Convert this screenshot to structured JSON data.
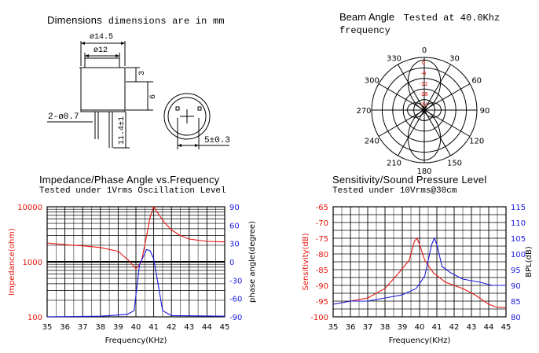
{
  "dimensions": {
    "title": "Dimensions",
    "note": "dimensions are in mm",
    "d_outer": "ø14.5",
    "d_inner": "ø12",
    "h_top": "3",
    "h_body": "6",
    "pins": "2-ø0.7",
    "pin_len": "11.4±1",
    "pitch": "5±0.3"
  },
  "beam": {
    "title": "Beam Angle",
    "tested": "Tested at 40.0Khz",
    "freq_word": "frequency",
    "angle_labels": [
      "0",
      "30",
      "60",
      "90",
      "120",
      "150",
      "180",
      "210",
      "240",
      "270",
      "300",
      "330"
    ],
    "ring_labels": [
      "0",
      "-6",
      "-12",
      "-18",
      "-24"
    ]
  },
  "impedance": {
    "title": "Impedance/Phase Angle vs.Frequency",
    "subtitle": "Tested under 1Vrms Oscillation Level",
    "ylabel_left": "Impedance(ohm)",
    "ylabel_right": "phase angle(degree)",
    "xlabel": "Frequency(KHz)"
  },
  "sensitivity": {
    "title": "Sensitivity/Sound Pressure Level",
    "subtitle": "Tested under 10Vrms@30cm",
    "ylabel_left": "Sensitivity(dB)",
    "ylabel_right": "BPL(dB)",
    "xlabel": "Frequency(KHz)"
  },
  "colors": {
    "red": "#e8140c",
    "blue": "#1a1adf",
    "grid": "#000000"
  },
  "chart_data": [
    {
      "type": "line",
      "x": [
        35,
        36,
        37,
        38,
        39,
        40,
        41,
        42,
        43,
        44,
        45
      ],
      "xlim": [
        35,
        45
      ],
      "ylim_left": [
        100,
        10000
      ],
      "yscale_left": "log",
      "ylim_right": [
        -90,
        90
      ],
      "left_ticks": [
        "10000",
        "1000",
        "100"
      ],
      "right_ticks": [
        "90",
        "60",
        "30",
        "0",
        "-30",
        "-60",
        "-90"
      ],
      "grid": true,
      "series": [
        {
          "axis": "left",
          "color": "#e8140c",
          "points": [
            [
              35,
              2200
            ],
            [
              36,
              2050
            ],
            [
              37,
              1950
            ],
            [
              38,
              1820
            ],
            [
              39,
              1550
            ],
            [
              39.6,
              1050
            ],
            [
              40,
              750
            ],
            [
              40.3,
              980
            ],
            [
              40.6,
              3000
            ],
            [
              40.8,
              6500
            ],
            [
              41,
              10000
            ],
            [
              41.2,
              8000
            ],
            [
              41.6,
              5200
            ],
            [
              42,
              3800
            ],
            [
              42.5,
              3000
            ],
            [
              43,
              2600
            ],
            [
              44,
              2350
            ],
            [
              45,
              2300
            ]
          ]
        },
        {
          "axis": "right",
          "color": "#1a1adf",
          "points": [
            [
              35,
              -90
            ],
            [
              38,
              -89
            ],
            [
              39.5,
              -86
            ],
            [
              39.9,
              -80
            ],
            [
              40.2,
              -5
            ],
            [
              40.6,
              20
            ],
            [
              40.8,
              18
            ],
            [
              41,
              5
            ],
            [
              41.3,
              -45
            ],
            [
              41.5,
              -80
            ],
            [
              42,
              -88
            ],
            [
              45,
              -89
            ]
          ]
        }
      ]
    },
    {
      "type": "line",
      "x": [
        35,
        36,
        37,
        38,
        39,
        40,
        41,
        42,
        43,
        44,
        45
      ],
      "xlim": [
        35,
        45
      ],
      "ylim_left": [
        -100,
        -65
      ],
      "ylim_right": [
        80,
        115
      ],
      "left_ticks": [
        "-65",
        "-70",
        "-75",
        "-80",
        "-85",
        "-90",
        "-95",
        "-100"
      ],
      "right_ticks": [
        "115",
        "110",
        "105",
        "100",
        "95",
        "90",
        "85",
        "80"
      ],
      "grid": true,
      "series": [
        {
          "axis": "left",
          "color": "#e8140c",
          "points": [
            [
              35,
              -96
            ],
            [
              36,
              -95
            ],
            [
              37,
              -94
            ],
            [
              38,
              -91
            ],
            [
              38.8,
              -86
            ],
            [
              39.4,
              -82
            ],
            [
              39.7,
              -76
            ],
            [
              39.85,
              -75
            ],
            [
              40,
              -77
            ],
            [
              40.3,
              -82
            ],
            [
              40.8,
              -86
            ],
            [
              41.5,
              -89
            ],
            [
              42.5,
              -91
            ],
            [
              43.2,
              -93
            ],
            [
              44,
              -96
            ],
            [
              44.5,
              -97
            ],
            [
              45,
              -97
            ]
          ]
        },
        {
          "axis": "right",
          "color": "#1a1adf",
          "points": [
            [
              35,
              84
            ],
            [
              36,
              85
            ],
            [
              37,
              85
            ],
            [
              38,
              86
            ],
            [
              39,
              87
            ],
            [
              39.8,
              89
            ],
            [
              40.3,
              93
            ],
            [
              40.7,
              103
            ],
            [
              40.85,
              105
            ],
            [
              41,
              103
            ],
            [
              41.3,
              96
            ],
            [
              41.8,
              94
            ],
            [
              42.5,
              92
            ],
            [
              43.5,
              91
            ],
            [
              44.2,
              90
            ],
            [
              45,
              90
            ]
          ]
        }
      ]
    }
  ]
}
